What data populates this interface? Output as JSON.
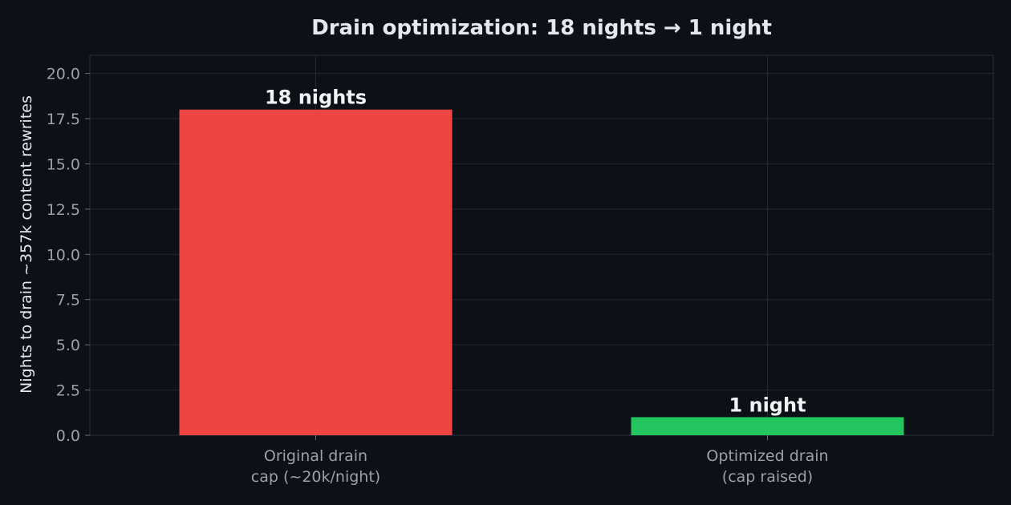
{
  "chart_data": {
    "type": "bar",
    "title": "Drain optimization: 18 nights → 1 night",
    "xlabel": "",
    "ylabel": "Nights to drain ~357k content rewrites",
    "ylim": [
      0,
      21
    ],
    "yticks": [
      0.0,
      2.5,
      5.0,
      7.5,
      10.0,
      12.5,
      15.0,
      17.5,
      20.0
    ],
    "ytick_labels": [
      "0.0",
      "2.5",
      "5.0",
      "7.5",
      "10.0",
      "12.5",
      "15.0",
      "17.5",
      "20.0"
    ],
    "grid": true,
    "categories": [
      [
        "Original drain",
        "cap (~20k/night)"
      ],
      [
        "Optimized drain",
        "(cap raised)"
      ]
    ],
    "values": [
      18,
      1
    ],
    "data_labels": [
      "18 nights",
      "1 night"
    ],
    "colors": [
      "#ef4444",
      "#22c55e"
    ]
  }
}
